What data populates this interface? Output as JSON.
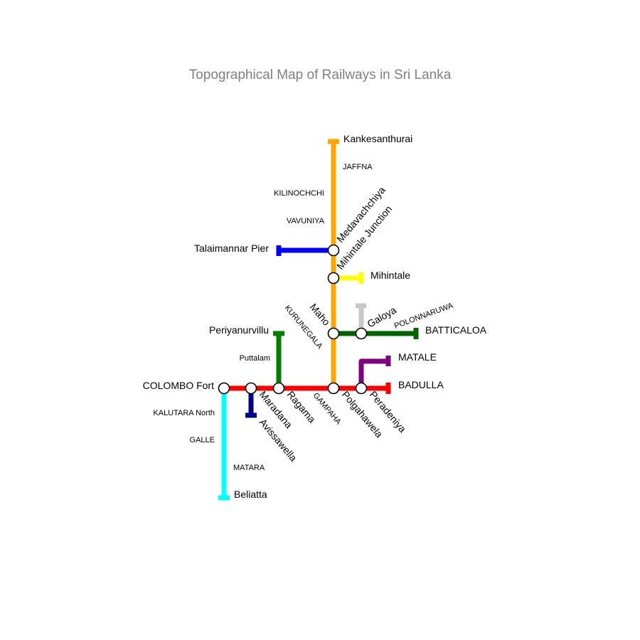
{
  "title": "Topographical Map of Railways in Sri Lanka",
  "colors": {
    "main_line": "#ffa500",
    "coast_line": "#ff0000",
    "southern_line": "#00ffff",
    "kelani_valley_line": "#00008b",
    "puttalam_line": "#008000",
    "mannar_line": "#0000ff",
    "mihintale_line": "#ffff00",
    "batticaloa_line": "#006400",
    "trincomalee_line": "#c8c8c8",
    "matale_line": "#800080"
  },
  "stations": {
    "kankesanthurai": "Kankesanthurai",
    "medavachchiya": "Medavachchiya",
    "talaimannar_pier": "Talaimannar Pier",
    "mihintale_junction": "Mihintale Junction",
    "mihintale": "Mihintale",
    "maho": "Maho",
    "galoya": "Galoya",
    "batticaloa": "BATTICALOA",
    "periyanurvillu": "Periyanurvillu",
    "matale": "MATALE",
    "colombo_fort": "COLOMBO Fort",
    "badulla": "BADULLA",
    "maradana": "Maradana",
    "ragama": "Ragama",
    "polgahawela": "Polgahawela",
    "peradeniya": "Peradeniya",
    "avissawella": "Avissawella",
    "beliatta": "Beliatta"
  },
  "towns": {
    "jaffna": "JAFFNA",
    "kilinochchi": "KILINOCHCHI",
    "vavuniya": "VAVUNIYA",
    "polonnaruwa": "POLONNARUWA",
    "kurunegala": "KURUNEGALA",
    "puttalam": "Puttalam",
    "gampaha": "GAMPAHA",
    "kalutara_north": "KALUTARA North",
    "galle": "GALLE",
    "matara": "MATARA"
  }
}
